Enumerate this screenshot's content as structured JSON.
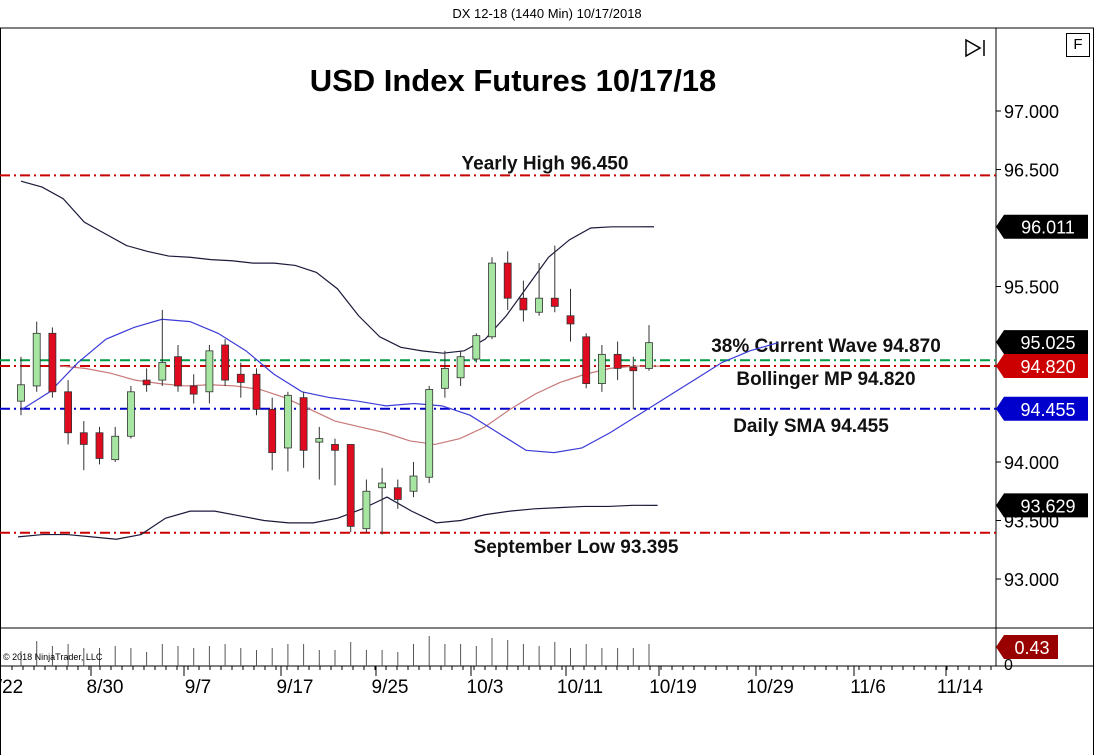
{
  "window": {
    "header": "DX 12-18 (1440 Min)  10/17/2018",
    "flag_label": "F",
    "copyright": "© 2018 NinjaTrader, LLC"
  },
  "chart_data": {
    "type": "candlestick",
    "title": "USD Index Futures 10/17/18",
    "y_range": [
      92.5,
      97.35
    ],
    "y_ticks": [
      {
        "value": 97.0,
        "label": "97.000"
      },
      {
        "value": 96.5,
        "label": "96.500"
      },
      {
        "value": 95.5,
        "label": "95.500"
      },
      {
        "value": 94.0,
        "label": "94.000"
      },
      {
        "value": 93.5,
        "label": "93.500"
      },
      {
        "value": 93.0,
        "label": "93.000"
      }
    ],
    "x_labels": [
      "/22",
      "8/30",
      "9/7",
      "9/17",
      "9/25",
      "10/3",
      "10/11",
      "10/19",
      "10/29",
      "11/6",
      "11/14"
    ],
    "candles": [
      {
        "o": 94.52,
        "h": 94.9,
        "l": 94.4,
        "c": 94.66
      },
      {
        "o": 94.65,
        "h": 95.2,
        "l": 94.6,
        "c": 95.1
      },
      {
        "o": 95.1,
        "h": 95.15,
        "l": 94.55,
        "c": 94.6
      },
      {
        "o": 94.6,
        "h": 94.7,
        "l": 94.15,
        "c": 94.25
      },
      {
        "o": 94.25,
        "h": 94.35,
        "l": 93.93,
        "c": 94.15
      },
      {
        "o": 94.25,
        "h": 94.3,
        "l": 93.98,
        "c": 94.03
      },
      {
        "o": 94.02,
        "h": 94.3,
        "l": 94.0,
        "c": 94.22
      },
      {
        "o": 94.22,
        "h": 94.65,
        "l": 94.2,
        "c": 94.6
      },
      {
        "o": 94.7,
        "h": 94.8,
        "l": 94.6,
        "c": 94.66
      },
      {
        "o": 94.7,
        "h": 95.3,
        "l": 94.65,
        "c": 94.85
      },
      {
        "o": 94.9,
        "h": 95.0,
        "l": 94.6,
        "c": 94.65
      },
      {
        "o": 94.65,
        "h": 94.75,
        "l": 94.5,
        "c": 94.58
      },
      {
        "o": 94.6,
        "h": 95.0,
        "l": 94.5,
        "c": 94.95
      },
      {
        "o": 95.0,
        "h": 95.05,
        "l": 94.65,
        "c": 94.7
      },
      {
        "o": 94.75,
        "h": 94.85,
        "l": 94.55,
        "c": 94.68
      },
      {
        "o": 94.75,
        "h": 94.8,
        "l": 94.4,
        "c": 94.45
      },
      {
        "o": 94.45,
        "h": 94.55,
        "l": 93.93,
        "c": 94.08
      },
      {
        "o": 94.12,
        "h": 94.6,
        "l": 93.92,
        "c": 94.57
      },
      {
        "o": 94.55,
        "h": 94.6,
        "l": 93.95,
        "c": 94.1
      },
      {
        "o": 94.17,
        "h": 94.3,
        "l": 93.85,
        "c": 94.2
      },
      {
        "o": 94.15,
        "h": 94.2,
        "l": 93.8,
        "c": 94.1
      },
      {
        "o": 94.15,
        "h": 94.15,
        "l": 93.4,
        "c": 93.45
      },
      {
        "o": 93.43,
        "h": 93.85,
        "l": 93.4,
        "c": 93.75
      },
      {
        "o": 93.78,
        "h": 93.95,
        "l": 93.38,
        "c": 93.82
      },
      {
        "o": 93.78,
        "h": 93.85,
        "l": 93.6,
        "c": 93.68
      },
      {
        "o": 93.75,
        "h": 94.0,
        "l": 93.7,
        "c": 93.88
      },
      {
        "o": 93.87,
        "h": 94.65,
        "l": 93.82,
        "c": 94.62
      },
      {
        "o": 94.63,
        "h": 94.95,
        "l": 94.55,
        "c": 94.8
      },
      {
        "o": 94.72,
        "h": 94.95,
        "l": 94.65,
        "c": 94.9
      },
      {
        "o": 94.88,
        "h": 95.1,
        "l": 94.85,
        "c": 95.08
      },
      {
        "o": 95.07,
        "h": 95.75,
        "l": 95.05,
        "c": 95.7
      },
      {
        "o": 95.7,
        "h": 95.8,
        "l": 95.3,
        "c": 95.4
      },
      {
        "o": 95.4,
        "h": 95.55,
        "l": 95.2,
        "c": 95.3
      },
      {
        "o": 95.28,
        "h": 95.7,
        "l": 95.25,
        "c": 95.4
      },
      {
        "o": 95.4,
        "h": 95.85,
        "l": 95.28,
        "c": 95.33
      },
      {
        "o": 95.25,
        "h": 95.48,
        "l": 95.03,
        "c": 95.18
      },
      {
        "o": 95.07,
        "h": 95.1,
        "l": 94.63,
        "c": 94.67
      },
      {
        "o": 94.67,
        "h": 95.0,
        "l": 94.6,
        "c": 94.92
      },
      {
        "o": 94.92,
        "h": 95.03,
        "l": 94.7,
        "c": 94.8
      },
      {
        "o": 94.81,
        "h": 94.9,
        "l": 94.45,
        "c": 94.78
      },
      {
        "o": 94.8,
        "h": 95.17,
        "l": 94.78,
        "c": 95.02
      }
    ],
    "bollinger_upper": [
      96.4,
      96.35,
      96.25,
      96.05,
      95.95,
      95.85,
      95.8,
      95.76,
      95.75,
      95.73,
      95.72,
      95.7,
      95.7,
      95.68,
      95.62,
      95.48,
      95.25,
      95.07,
      94.98,
      94.95,
      94.93,
      94.95,
      95.05,
      95.25,
      95.5,
      95.75,
      95.9,
      96.0,
      96.01,
      96.01,
      96.011
    ],
    "bollinger_mid": [
      94.82,
      94.8,
      94.76,
      94.7,
      94.67,
      94.65,
      94.66,
      94.65,
      94.62,
      94.55,
      94.45,
      94.35,
      94.3,
      94.25,
      94.18,
      94.15,
      94.2,
      94.3,
      94.45,
      94.58,
      94.68,
      94.75,
      94.8,
      94.82,
      94.82
    ],
    "bollinger_lower": [
      93.36,
      93.38,
      93.38,
      93.36,
      93.34,
      93.38,
      93.52,
      93.58,
      93.58,
      93.54,
      93.5,
      93.48,
      93.48,
      93.52,
      93.6,
      93.7,
      93.58,
      93.48,
      93.5,
      93.55,
      93.58,
      93.6,
      93.61,
      93.62,
      93.62,
      93.63,
      93.629
    ],
    "sma": [
      94.45,
      94.6,
      94.85,
      95.05,
      95.15,
      95.22,
      95.2,
      95.1,
      94.95,
      94.75,
      94.6,
      94.55,
      94.52,
      94.48,
      94.5,
      94.48,
      94.4,
      94.25,
      94.1,
      94.08,
      94.12,
      94.25,
      94.4,
      94.55,
      94.7,
      94.85,
      94.95,
      95.02
    ],
    "horizontal_levels": [
      {
        "value": 96.45,
        "color": "#cc0000",
        "label": "Yearly High 96.450"
      },
      {
        "value": 94.87,
        "color": "#009a44",
        "label": "38% Current Wave 94.870"
      },
      {
        "value": 94.82,
        "color": "#cc0000",
        "label": "Bollinger MP 94.820"
      },
      {
        "value": 94.455,
        "color": "#0000cc",
        "label": "Daily SMA 94.455"
      },
      {
        "value": 93.395,
        "color": "#cc0000",
        "label": "September Low 93.395"
      }
    ],
    "price_markers": [
      {
        "value": 96.011,
        "label": "96.011",
        "bg": "#000000"
      },
      {
        "value": 95.025,
        "label": "95.025",
        "bg": "#000000"
      },
      {
        "value": 94.82,
        "label": "94.820",
        "bg": "#cc0000"
      },
      {
        "value": 94.455,
        "label": "94.455",
        "bg": "#0000cc"
      },
      {
        "value": 93.629,
        "label": "93.629",
        "bg": "#000000"
      }
    ],
    "volume": [
      15,
      25,
      20,
      22,
      18,
      18,
      20,
      18,
      14,
      22,
      20,
      18,
      20,
      22,
      18,
      16,
      18,
      22,
      22,
      16,
      16,
      24,
      16,
      16,
      14,
      22,
      30,
      22,
      22,
      20,
      28,
      26,
      22,
      20,
      24,
      18,
      22,
      18,
      18,
      18,
      22
    ],
    "indicator_marker": {
      "label": "0.43",
      "bg": "#990000",
      "y_label": "0"
    },
    "colors": {
      "up": "#a7e5a3",
      "down": "#e00b1f",
      "band_upper": "#1a1a3a",
      "band_mid": "#c87878",
      "sma": "#3c3cd8"
    }
  }
}
